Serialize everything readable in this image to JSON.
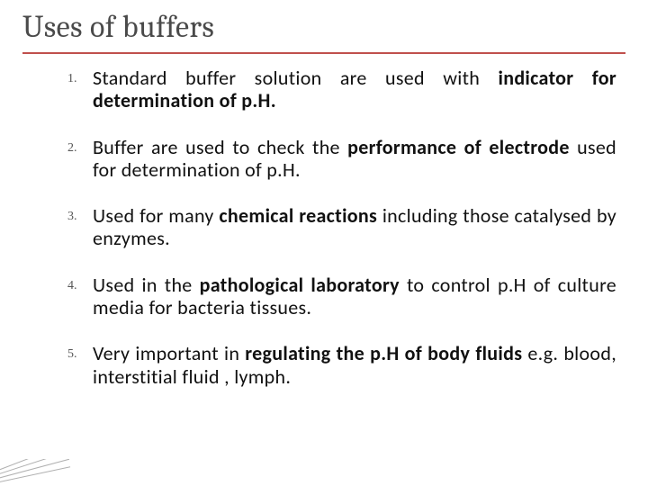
{
  "title": "Uses of buffers",
  "items": [
    {
      "num": "1.",
      "segments": [
        {
          "t": "Standard buffer solution are used with "
        },
        {
          "t": "indicator for determination of p.H.",
          "b": true
        }
      ]
    },
    {
      "num": "2.",
      "segments": [
        {
          "t": "Buffer are used to check the "
        },
        {
          "t": "performance of electrode",
          "b": true
        },
        {
          "t": " used for determination of p.H."
        }
      ]
    },
    {
      "num": "3.",
      "segments": [
        {
          "t": "Used for many "
        },
        {
          "t": "chemical reactions",
          "b": true
        },
        {
          "t": " including those catalysed by enzymes."
        }
      ]
    },
    {
      "num": "4.",
      "segments": [
        {
          "t": "Used in the "
        },
        {
          "t": "pathological laboratory",
          "b": true
        },
        {
          "t": " to control p.H of culture media for bacteria tissues."
        }
      ]
    },
    {
      "num": "5.",
      "segments": [
        {
          "t": "Very important in "
        },
        {
          "t": "regulating the p.H of body fluids",
          "b": true
        },
        {
          "t": " e.g. blood, interstitial fluid , lymph."
        }
      ]
    }
  ]
}
